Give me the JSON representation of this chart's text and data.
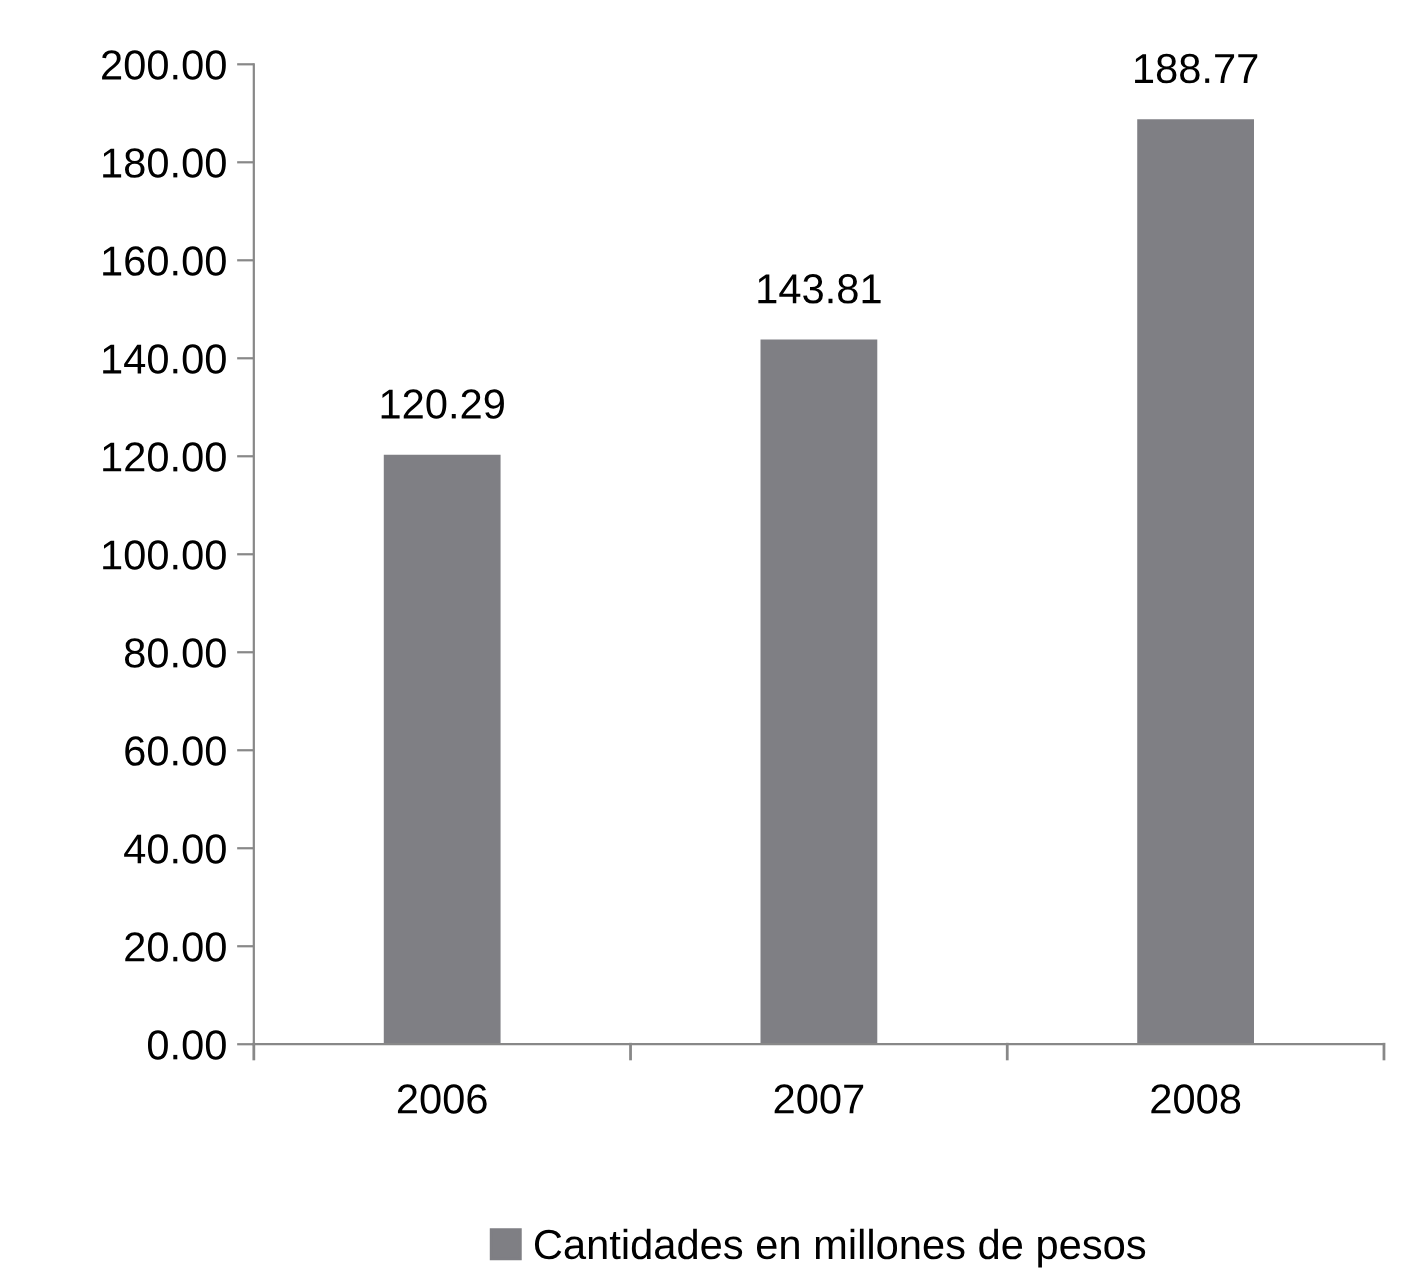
{
  "chart_data": {
    "type": "bar",
    "categories": [
      "2006",
      "2007",
      "2008"
    ],
    "series": [
      {
        "name": "Cantidades en millones de pesos",
        "color": "#7f7f84",
        "values": [
          120.29,
          143.81,
          188.77
        ]
      }
    ],
    "ylim": [
      0,
      200
    ],
    "yticks": [
      {
        "value": 0,
        "label": "0.00"
      },
      {
        "value": 20,
        "label": "20.00"
      },
      {
        "value": 40,
        "label": "40.00"
      },
      {
        "value": 60,
        "label": "60.00"
      },
      {
        "value": 80,
        "label": "80.00"
      },
      {
        "value": 100,
        "label": "100.00"
      },
      {
        "value": 120,
        "label": "120.00"
      },
      {
        "value": 140,
        "label": "140.00"
      },
      {
        "value": 160,
        "label": "160.00"
      },
      {
        "value": 180,
        "label": "180.00"
      },
      {
        "value": 200,
        "label": "200.00"
      }
    ],
    "data_labels": true,
    "grid": false,
    "legend": "bottom"
  }
}
